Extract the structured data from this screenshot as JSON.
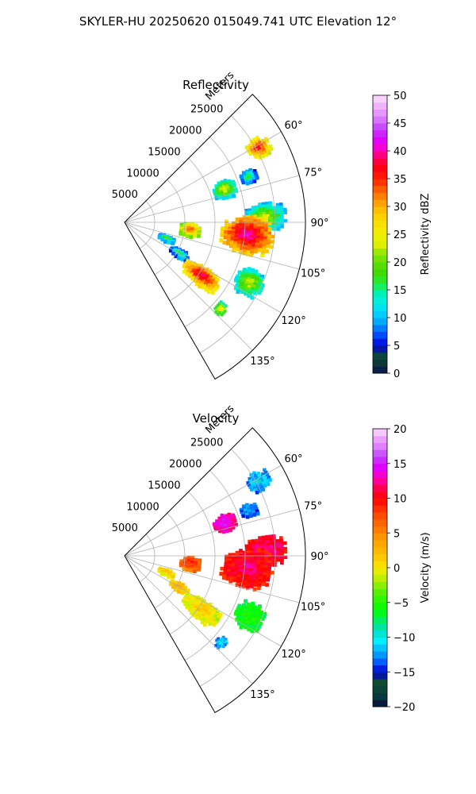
{
  "figure": {
    "suptitle": "SKYLER-HU  20250620  015049.741 UTC Elevation 12°"
  },
  "chart_data": [
    {
      "type": "heatmap",
      "subtype": "polar-sector-ppi",
      "title": "Reflectivity",
      "radial_label": "Meters",
      "radial_ticks": [
        5000,
        10000,
        15000,
        20000,
        25000
      ],
      "radial_tick_labels": [
        "5000",
        "10000",
        "15000",
        "20000",
        "25000"
      ],
      "rlim": [
        0,
        30000
      ],
      "angular_range_deg": [
        45,
        150
      ],
      "angular_ticks": [
        60,
        75,
        90,
        105,
        120,
        135
      ],
      "angular_tick_labels": [
        "60°",
        "75°",
        "90°",
        "105°",
        "120°",
        "135°"
      ],
      "grid": true,
      "colorbar": {
        "label": "Reflectivity dBZ",
        "range": [
          0,
          50
        ],
        "ticks": [
          0,
          5,
          10,
          15,
          20,
          25,
          30,
          35,
          40,
          45,
          50
        ],
        "tick_labels": [
          "0",
          "5",
          "10",
          "15",
          "20",
          "25",
          "30",
          "35",
          "40",
          "45",
          "50"
        ],
        "colormap": "NWSRef-like"
      },
      "echoes": [
        {
          "az": 61,
          "r": 25500,
          "dr": 2000,
          "daz": 4,
          "value": 38
        },
        {
          "az": 70,
          "r": 22000,
          "dr": 1500,
          "daz": 3,
          "value": 20
        },
        {
          "az": 72,
          "r": 17500,
          "dr": 2000,
          "daz": 5,
          "value": 26
        },
        {
          "az": 88,
          "r": 23500,
          "dr": 3500,
          "daz": 6,
          "value": 24
        },
        {
          "az": 96,
          "r": 20500,
          "dr": 4500,
          "daz": 9,
          "value": 42
        },
        {
          "az": 97,
          "r": 11000,
          "dr": 1800,
          "daz": 6,
          "value": 35
        },
        {
          "az": 112,
          "r": 7500,
          "dr": 1500,
          "daz": 4,
          "value": 22
        },
        {
          "az": 120,
          "r": 10500,
          "dr": 1800,
          "daz": 4,
          "value": 20
        },
        {
          "az": 125,
          "r": 15500,
          "dr": 3500,
          "daz": 6,
          "value": 40
        },
        {
          "az": 116,
          "r": 23000,
          "dr": 2500,
          "daz": 6,
          "value": 25
        },
        {
          "az": 132,
          "r": 21500,
          "dr": 1000,
          "daz": 3,
          "value": 28
        }
      ]
    },
    {
      "type": "heatmap",
      "subtype": "polar-sector-ppi",
      "title": "Velocity",
      "radial_label": "Meters",
      "radial_ticks": [
        5000,
        10000,
        15000,
        20000,
        25000
      ],
      "radial_tick_labels": [
        "5000",
        "10000",
        "15000",
        "20000",
        "25000"
      ],
      "rlim": [
        0,
        30000
      ],
      "angular_range_deg": [
        45,
        150
      ],
      "angular_ticks": [
        60,
        75,
        90,
        105,
        120,
        135
      ],
      "angular_tick_labels": [
        "60°",
        "75°",
        "90°",
        "105°",
        "120°",
        "135°"
      ],
      "grid": true,
      "colorbar": {
        "label": "Velocity (m/s)",
        "range": [
          -20,
          20
        ],
        "ticks": [
          -20,
          -15,
          -10,
          -5,
          0,
          5,
          10,
          15,
          20
        ],
        "tick_labels": [
          "−20",
          "−15",
          "−10",
          "−5",
          "0",
          "5",
          "10",
          "15",
          "20"
        ],
        "colormap": "NWSVel-like"
      },
      "echoes": [
        {
          "az": 61,
          "r": 25500,
          "dr": 2000,
          "daz": 4,
          "value": -10
        },
        {
          "az": 70,
          "r": 22000,
          "dr": 1500,
          "daz": 3,
          "value": -11
        },
        {
          "az": 72,
          "r": 17500,
          "dr": 2000,
          "daz": 5,
          "value": 15
        },
        {
          "az": 88,
          "r": 23500,
          "dr": 3500,
          "daz": 6,
          "value": 13
        },
        {
          "az": 96,
          "r": 20500,
          "dr": 4500,
          "daz": 9,
          "value": 12
        },
        {
          "az": 97,
          "r": 11000,
          "dr": 1800,
          "daz": 6,
          "value": 9
        },
        {
          "az": 112,
          "r": 7500,
          "dr": 1500,
          "daz": 4,
          "value": 3
        },
        {
          "az": 120,
          "r": 10500,
          "dr": 1800,
          "daz": 4,
          "value": 4
        },
        {
          "az": 125,
          "r": 15500,
          "dr": 3500,
          "daz": 6,
          "value": 2
        },
        {
          "az": 116,
          "r": 23000,
          "dr": 2500,
          "daz": 6,
          "value": -4
        },
        {
          "az": 132,
          "r": 21500,
          "dr": 1000,
          "daz": 3,
          "value": -10
        }
      ]
    }
  ]
}
